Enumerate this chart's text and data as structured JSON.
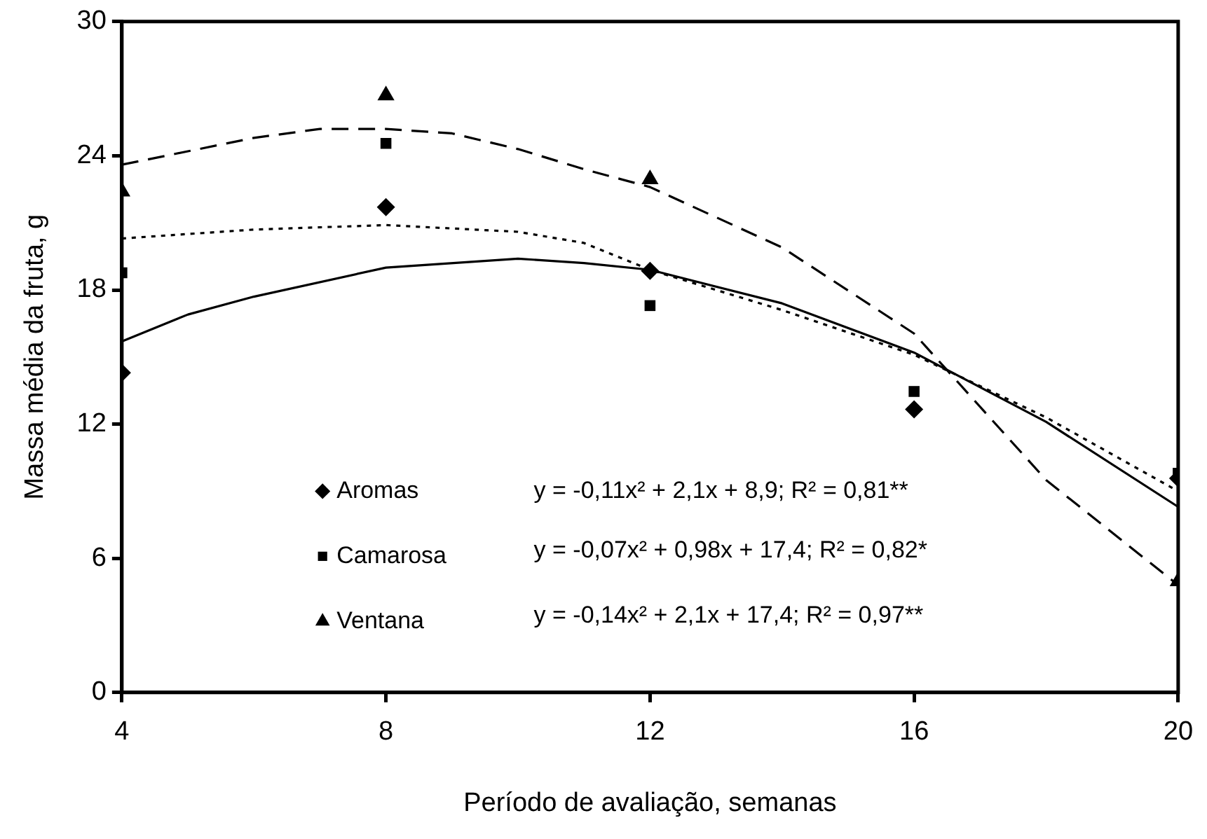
{
  "chart_data": {
    "type": "scatter",
    "xlabel": "Período de avaliação, semanas",
    "ylabel": "Massa média da fruta, g",
    "x": [
      4,
      8,
      12,
      16,
      20
    ],
    "series": [
      {
        "name": "Aromas",
        "color": "#000000",
        "marker": "diamond",
        "values": [
          14.3,
          21.7,
          18.85,
          12.66,
          9.58
        ]
      },
      {
        "name": "Camarosa",
        "color": "#000000",
        "marker": "square",
        "values": [
          18.77,
          24.55,
          17.3,
          13.46,
          9.8
        ]
      },
      {
        "name": "Ventana",
        "color": "#000000",
        "marker": "triangle",
        "values": [
          22.4,
          26.7,
          22.95,
          null,
          4.97
        ]
      },
      {
        "type": "line",
        "color": "#000000",
        "line_style": "solid",
        "marker": "none",
        "x": [
          4,
          5,
          6,
          8,
          10,
          11,
          12,
          14,
          16,
          18,
          20
        ],
        "values": [
          15.7,
          16.9,
          17.7,
          19.0,
          19.4,
          19.2,
          18.9,
          17.4,
          15.2,
          12.1,
          8.3
        ]
      },
      {
        "type": "line",
        "color": "#000000",
        "line_style": "dotted",
        "marker": "none",
        "x": [
          4,
          6,
          8,
          10,
          11,
          12,
          14,
          16,
          18,
          20
        ],
        "values": [
          20.3,
          20.7,
          20.9,
          20.6,
          20.1,
          18.9,
          17.1,
          15.1,
          12.3,
          9.0
        ]
      },
      {
        "type": "line",
        "color": "#000000",
        "line_style": "dashed",
        "marker": "none",
        "x": [
          4,
          5,
          6,
          7,
          8,
          9,
          10,
          11,
          12,
          14,
          16,
          18,
          20
        ],
        "values": [
          23.6,
          24.2,
          24.8,
          25.2,
          25.2,
          25.0,
          24.3,
          23.4,
          22.6,
          19.9,
          16.05,
          9.5,
          4.8
        ]
      }
    ],
    "xlim": [
      4,
      20
    ],
    "xticks": [
      4,
      8,
      12,
      16,
      20
    ],
    "ylim": [
      0,
      30
    ],
    "yticks": [
      0,
      6,
      12,
      18,
      24,
      30
    ],
    "legend": "bottom left",
    "annotations": [
      "y = -0,11x² + 2,1x + 8,9; R² = 0,81**",
      "y = -0,07x² + 0,98x + 17,4; R² = 0,82*",
      "y = -0,14x² + 2,1x + 17,4; R² = 0,97**"
    ]
  }
}
